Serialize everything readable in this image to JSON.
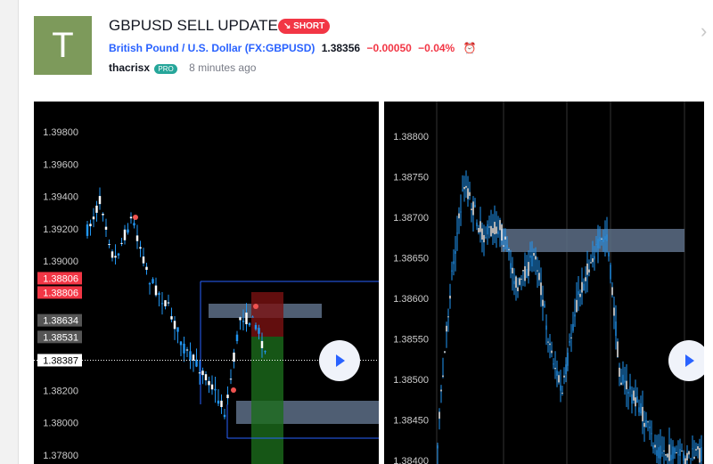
{
  "header": {
    "avatar": "T",
    "title": "GBPUSD SELL UPDATE",
    "badge": "SHORT",
    "symbol_name": "British Pound / U.S. Dollar",
    "symbol_code": "(FX:GBPUSD)",
    "price": "1.38356",
    "change": "−0.00050",
    "change_pct": "−0.04%",
    "author": "thacrisx",
    "author_badge": "PRO",
    "time": "8 minutes ago"
  },
  "charts": [
    {
      "price_axis": [
        "1.39800",
        "1.39600",
        "1.39400",
        "1.39200",
        "1.39000",
        "1.38200",
        "1.38000",
        "1.37800"
      ],
      "price_labels": [
        {
          "text": "1.38806",
          "kind": "sell"
        },
        {
          "text": "1.38806",
          "kind": "sell"
        },
        {
          "text": "1.38634",
          "kind": "level"
        },
        {
          "text": "1.38531",
          "kind": "level"
        },
        {
          "text": "1.38387",
          "kind": "last"
        }
      ]
    },
    {
      "price_axis": [
        "1.38800",
        "1.38750",
        "1.38700",
        "1.38650",
        "1.38600",
        "1.38550",
        "1.38500",
        "1.38450",
        "1.38400"
      ]
    }
  ]
}
